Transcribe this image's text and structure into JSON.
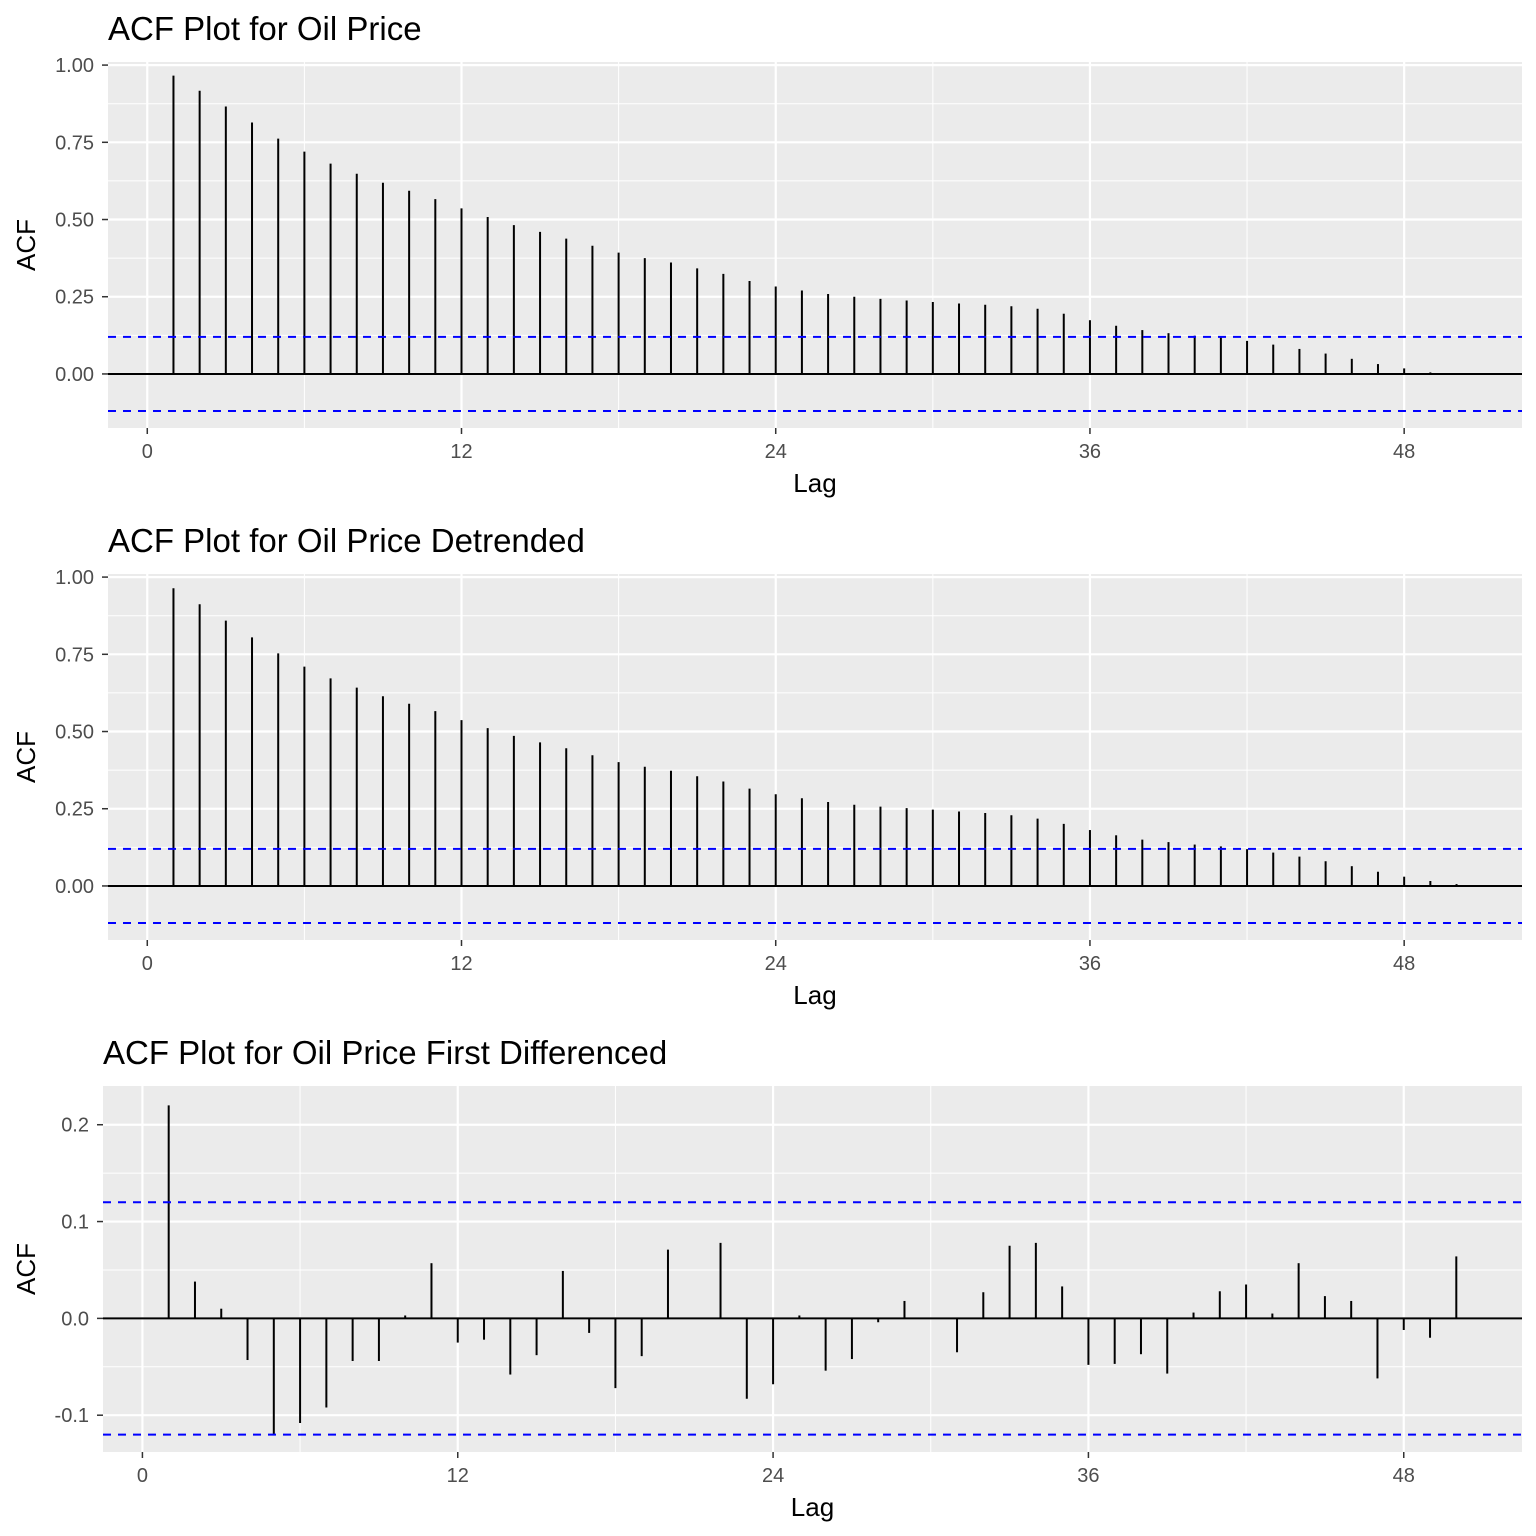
{
  "chart_data": [
    {
      "type": "bar",
      "title": "ACF Plot for Oil Price",
      "xlabel": "Lag",
      "ylabel": "ACF",
      "xlim": [
        -1.5,
        52.5
      ],
      "ylim": [
        -0.175,
        1.01
      ],
      "xticks": [
        0,
        12,
        24,
        36,
        48
      ],
      "yticks": [
        0.0,
        0.25,
        0.5,
        0.75,
        1.0
      ],
      "ytick_labels": [
        "0.00",
        "0.25",
        "0.50",
        "0.75",
        "1.00"
      ],
      "confidence_bound": 0.12,
      "grid": true,
      "lags": [
        1,
        2,
        3,
        4,
        5,
        6,
        7,
        8,
        9,
        10,
        11,
        12,
        13,
        14,
        15,
        16,
        17,
        18,
        19,
        20,
        21,
        22,
        23,
        24,
        25,
        26,
        27,
        28,
        29,
        30,
        31,
        32,
        33,
        34,
        35,
        36,
        37,
        38,
        39,
        40,
        41,
        42,
        43,
        44,
        45,
        46,
        47,
        48,
        49
      ],
      "values": [
        0.966,
        0.917,
        0.866,
        0.814,
        0.762,
        0.72,
        0.681,
        0.648,
        0.619,
        0.593,
        0.566,
        0.536,
        0.508,
        0.482,
        0.46,
        0.438,
        0.415,
        0.393,
        0.375,
        0.361,
        0.342,
        0.324,
        0.301,
        0.283,
        0.27,
        0.259,
        0.25,
        0.243,
        0.238,
        0.233,
        0.228,
        0.224,
        0.219,
        0.211,
        0.195,
        0.174,
        0.156,
        0.142,
        0.132,
        0.124,
        0.118,
        0.107,
        0.095,
        0.081,
        0.066,
        0.049,
        0.032,
        0.018,
        0.005
      ]
    },
    {
      "type": "bar",
      "title": "ACF Plot for Oil Price Detrended",
      "xlabel": "Lag",
      "ylabel": "ACF",
      "xlim": [
        -1.5,
        52.5
      ],
      "ylim": [
        -0.175,
        1.01
      ],
      "xticks": [
        0,
        12,
        24,
        36,
        48
      ],
      "yticks": [
        0.0,
        0.25,
        0.5,
        0.75,
        1.0
      ],
      "ytick_labels": [
        "0.00",
        "0.25",
        "0.50",
        "0.75",
        "1.00"
      ],
      "confidence_bound": 0.12,
      "grid": true,
      "lags": [
        1,
        2,
        3,
        4,
        5,
        6,
        7,
        8,
        9,
        10,
        11,
        12,
        13,
        14,
        15,
        16,
        17,
        18,
        19,
        20,
        21,
        22,
        23,
        24,
        25,
        26,
        27,
        28,
        29,
        30,
        31,
        32,
        33,
        34,
        35,
        36,
        37,
        38,
        39,
        40,
        41,
        42,
        43,
        44,
        45,
        46,
        47,
        48,
        49,
        50
      ],
      "values": [
        0.964,
        0.912,
        0.859,
        0.805,
        0.753,
        0.71,
        0.672,
        0.642,
        0.614,
        0.59,
        0.566,
        0.537,
        0.511,
        0.486,
        0.465,
        0.446,
        0.423,
        0.401,
        0.386,
        0.373,
        0.355,
        0.338,
        0.315,
        0.297,
        0.284,
        0.272,
        0.263,
        0.257,
        0.252,
        0.247,
        0.241,
        0.236,
        0.229,
        0.218,
        0.201,
        0.181,
        0.164,
        0.15,
        0.142,
        0.134,
        0.128,
        0.119,
        0.108,
        0.095,
        0.08,
        0.064,
        0.046,
        0.03,
        0.016,
        0.006
      ]
    },
    {
      "type": "bar",
      "title": "ACF Plot for Oil Price First Differenced",
      "xlabel": "Lag",
      "ylabel": "ACF",
      "xlim": [
        -1.5,
        52.5
      ],
      "ylim": [
        -0.138,
        0.24
      ],
      "xticks": [
        0,
        12,
        24,
        36,
        48
      ],
      "yticks": [
        -0.1,
        0.0,
        0.1,
        0.2
      ],
      "ytick_labels": [
        "-0.1",
        "0.0",
        "0.1",
        "0.2"
      ],
      "confidence_bound": 0.12,
      "grid": true,
      "lags": [
        1,
        2,
        3,
        4,
        5,
        6,
        7,
        8,
        9,
        10,
        11,
        12,
        13,
        14,
        15,
        16,
        17,
        18,
        19,
        20,
        21,
        22,
        23,
        24,
        25,
        26,
        27,
        28,
        29,
        30,
        31,
        32,
        33,
        34,
        35,
        36,
        37,
        38,
        39,
        40,
        41,
        42,
        43,
        44,
        45,
        46,
        47,
        48,
        49,
        50
      ],
      "values": [
        0.22,
        0.038,
        0.01,
        -0.043,
        -0.12,
        -0.108,
        -0.092,
        -0.044,
        -0.044,
        0.003,
        0.057,
        -0.025,
        -0.022,
        -0.058,
        -0.038,
        0.049,
        -0.015,
        -0.072,
        -0.039,
        0.071,
        0.0,
        0.078,
        -0.083,
        -0.068,
        0.003,
        -0.054,
        -0.042,
        -0.004,
        0.018,
        0.0,
        -0.035,
        0.027,
        0.075,
        0.078,
        0.033,
        -0.048,
        -0.047,
        -0.037,
        -0.057,
        0.006,
        0.028,
        0.035,
        0.005,
        0.057,
        0.023,
        0.018,
        -0.062,
        -0.012,
        -0.02,
        0.064
      ]
    }
  ]
}
